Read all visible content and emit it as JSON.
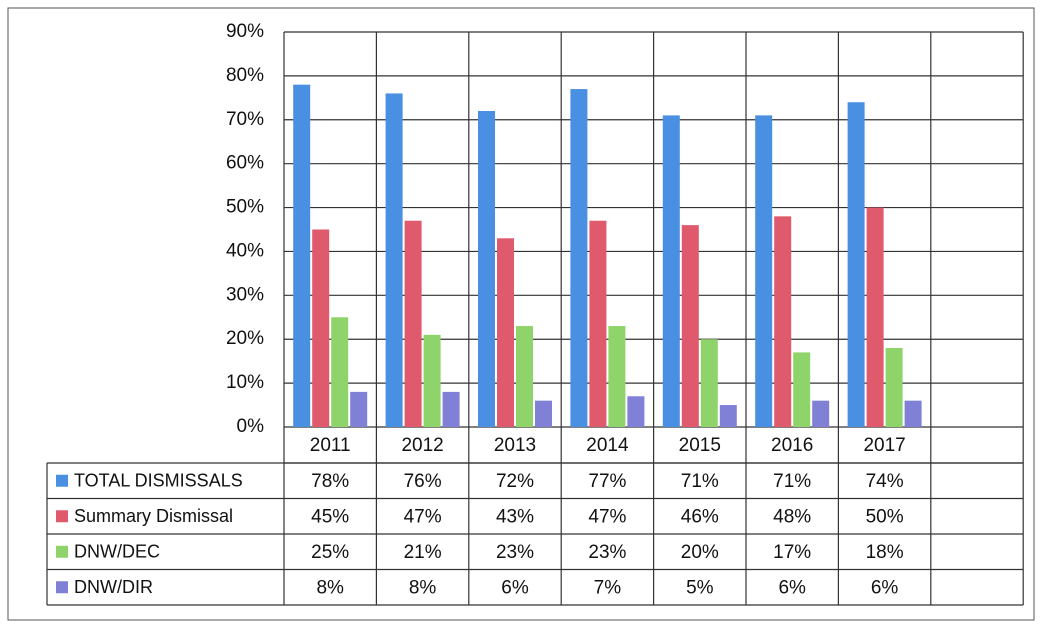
{
  "chart_data": {
    "type": "bar",
    "title": "",
    "xlabel": "",
    "ylabel": "",
    "categories": [
      "2011",
      "2012",
      "2013",
      "2014",
      "2015",
      "2016",
      "2017"
    ],
    "ylim": [
      0,
      90
    ],
    "ytick_step": 10,
    "ytick_suffix": "%",
    "grid": true,
    "legend": "data-table-left",
    "series": [
      {
        "name": "TOTAL DISMISSALS",
        "color": "#4a90e2",
        "values": [
          78,
          76,
          72,
          77,
          71,
          71,
          74
        ],
        "labels": [
          "78%",
          "76%",
          "72%",
          "77%",
          "71%",
          "71%",
          "74%"
        ]
      },
      {
        "name": "Summary Dismissal",
        "color": "#e05a6e",
        "values": [
          45,
          47,
          43,
          47,
          46,
          48,
          50
        ],
        "labels": [
          "45%",
          "47%",
          "43%",
          "47%",
          "46%",
          "48%",
          "50%"
        ]
      },
      {
        "name": "DNW/DEC",
        "color": "#8fd46b",
        "values": [
          25,
          21,
          23,
          23,
          20,
          17,
          18
        ],
        "labels": [
          "25%",
          "21%",
          "23%",
          "23%",
          "20%",
          "17%",
          "18%"
        ]
      },
      {
        "name": "DNW/DIR",
        "color": "#7f80d6",
        "values": [
          8,
          8,
          6,
          7,
          5,
          6,
          6
        ],
        "labels": [
          "8%",
          "8%",
          "6%",
          "7%",
          "5%",
          "6%",
          "6%"
        ]
      }
    ]
  }
}
